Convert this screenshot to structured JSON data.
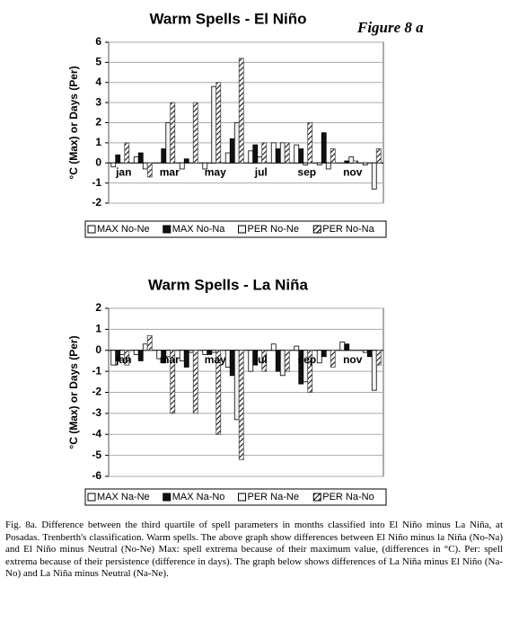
{
  "figure_label": "Figure 8 a",
  "caption": "Fig. 8a. Difference between the third quartile of spell parameters in months classified into El Niño minus La Niña, at Posadas. Trenberth's classification. Warm spells. The above graph show differences between El Niño minus la Niña (No-Na) and El Niño minus Neutral (No-Ne) Max: spell extrema because of their maximum value, (differences in °C). Per: spell extrema because of their persistence (difference in days). The graph below shows differences of La Niña minus El Niño (Na-No) and La Niña minus Neutral (Na-Ne).",
  "chart_data": [
    {
      "type": "bar",
      "title": "Warm Spells - El Niño",
      "y_label": "°C (Max) or Days (Per)",
      "categories": [
        "jan",
        null,
        "mar",
        null,
        "may",
        null,
        "jul",
        null,
        "sep",
        null,
        "nov",
        null
      ],
      "ylim": [
        -2,
        6
      ],
      "yticks": [
        -2,
        -1,
        0,
        1,
        2,
        3,
        4,
        5,
        6
      ],
      "grid": true,
      "legend": "bottom",
      "series": [
        {
          "name": "MAX No-Ne",
          "color": "#ffffff",
          "values": [
            -0.2,
            0.3,
            0,
            -0.3,
            -0.3,
            0.5,
            0.6,
            1.0,
            0.9,
            -0.1,
            0,
            -0.1
          ]
        },
        {
          "name": "MAX No-Na",
          "color": "#111111",
          "values": [
            0.4,
            0.5,
            0.7,
            0.2,
            0,
            1.2,
            0.9,
            0.7,
            0.7,
            1.5,
            0.1,
            0
          ]
        },
        {
          "name": "PER No-Ne",
          "color": "#f2f2f2",
          "values": [
            0,
            -0.3,
            2.0,
            0,
            3.8,
            2.0,
            0.3,
            1.0,
            -0.1,
            -0.3,
            0.3,
            -1.3
          ]
        },
        {
          "name": "PER No-Na",
          "color": "#444444",
          "hatch": true,
          "values": [
            1.0,
            -0.7,
            3.0,
            3.0,
            4.0,
            5.2,
            1.0,
            1.0,
            2.0,
            0.7,
            0.1,
            0.7
          ]
        }
      ]
    },
    {
      "type": "bar",
      "title": "Warm Spells - La Niña",
      "y_label": "°C (Max) or Days (Per)",
      "categories": [
        "jan",
        null,
        "mar",
        null,
        "may",
        null,
        "jul",
        null,
        "sep",
        null,
        "nov",
        null
      ],
      "ylim": [
        -6,
        2
      ],
      "yticks": [
        -6,
        -5,
        -4,
        -3,
        -2,
        -1,
        0,
        1,
        2
      ],
      "grid": true,
      "legend": "bottom",
      "series": [
        {
          "name": "MAX Na-Ne",
          "color": "#ffffff",
          "values": [
            -0.7,
            -0.2,
            -0.4,
            -0.5,
            -0.2,
            -0.8,
            -1.0,
            0.3,
            0.2,
            -0.6,
            0.4,
            -0.1
          ]
        },
        {
          "name": "MAX Na-No",
          "color": "#111111",
          "values": [
            -0.5,
            -0.5,
            -0.6,
            -0.8,
            -0.2,
            -1.2,
            -0.7,
            -1.0,
            -1.6,
            -0.3,
            0.3,
            -0.3
          ]
        },
        {
          "name": "PER Na-Ne",
          "color": "#f2f2f2",
          "values": [
            -0.2,
            0.3,
            -0.3,
            -0.1,
            -0.1,
            -3.3,
            0,
            -1.2,
            -1.5,
            0,
            0,
            -1.9
          ]
        },
        {
          "name": "PER Na-No",
          "color": "#444444",
          "hatch": true,
          "values": [
            -0.7,
            0.7,
            -3.0,
            -3.0,
            -4.0,
            -5.2,
            -1.0,
            -1.0,
            -2.0,
            -0.8,
            0,
            -0.7
          ]
        }
      ]
    }
  ]
}
